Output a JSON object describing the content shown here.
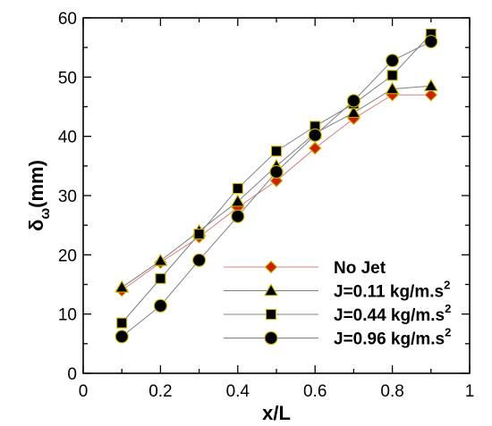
{
  "chart_data": {
    "type": "line",
    "xlabel": "x/L",
    "ylabel_main": "δ",
    "ylabel_sub": "ω",
    "ylabel_unit": "(mm)",
    "xlim": [
      0,
      1
    ],
    "ylim": [
      0,
      60
    ],
    "xticks": [
      0,
      0.2,
      0.4,
      0.6,
      0.8,
      1
    ],
    "xtick_labels": [
      "0",
      "0.2",
      "0.4",
      "0.6",
      "0.8",
      "1"
    ],
    "yticks": [
      0,
      10,
      20,
      30,
      40,
      50,
      60
    ],
    "ytick_labels": [
      "0",
      "10",
      "20",
      "30",
      "40",
      "50",
      "60"
    ],
    "grid": false,
    "legend_position": "bottom-right",
    "x": [
      0.1,
      0.2,
      0.3,
      0.4,
      0.5,
      0.6,
      0.7,
      0.8,
      0.9
    ],
    "series": [
      {
        "name": "No Jet",
        "legend_main": "No Jet",
        "legend_sup": "",
        "marker": "diamond",
        "color": "#cc2200",
        "line_color": "#d98080",
        "values": [
          14.0,
          18.7,
          23.0,
          28.0,
          32.5,
          38.0,
          43.0,
          47.0,
          47.0
        ]
      },
      {
        "name": "J=0.11 kg/m.s2",
        "legend_main": "J=0.11 kg/m.s",
        "legend_sup": "2",
        "marker": "triangle",
        "color": "#000000",
        "line_color": "#808080",
        "values": [
          14.5,
          19.0,
          24.0,
          29.0,
          35.0,
          40.5,
          44.0,
          48.0,
          48.5
        ]
      },
      {
        "name": "J=0.44 kg/m.s2",
        "legend_main": "J=0.44 kg/m.s",
        "legend_sup": "2",
        "marker": "square",
        "color": "#000000",
        "line_color": "#808080",
        "values": [
          8.5,
          16.0,
          23.5,
          31.2,
          37.5,
          41.7,
          45.5,
          50.3,
          57.3
        ]
      },
      {
        "name": "J=0.96 kg/m.s2",
        "legend_main": "J=0.96 kg/m.s",
        "legend_sup": "2",
        "marker": "circle",
        "color": "#000000",
        "line_color": "#808080",
        "values": [
          6.2,
          11.4,
          19.1,
          26.5,
          34.0,
          40.2,
          46.0,
          52.8,
          56.0
        ]
      }
    ]
  }
}
